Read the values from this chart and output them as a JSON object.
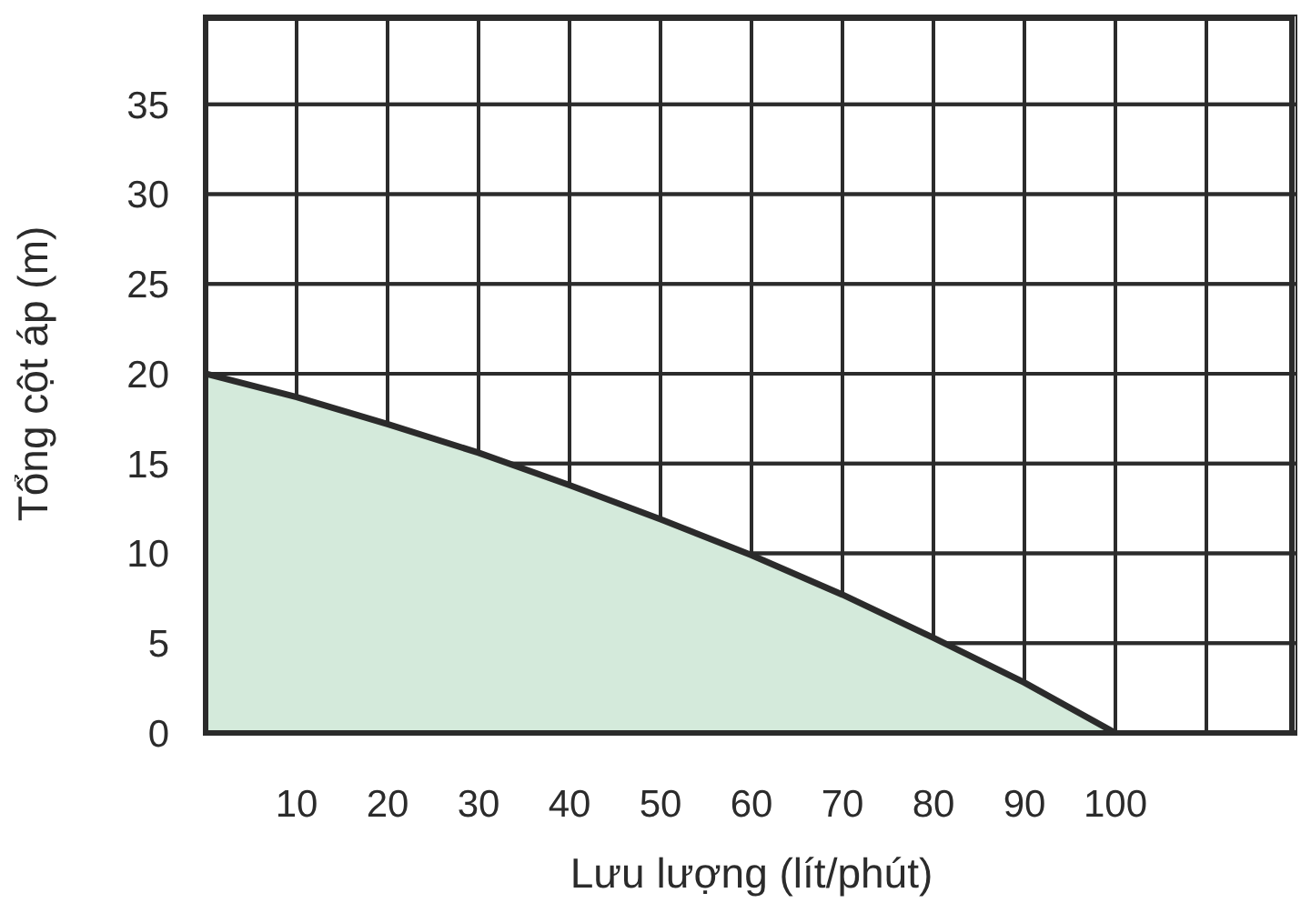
{
  "chart_data": {
    "type": "area",
    "xlabel": "Lưu lượng (lít/phút)",
    "ylabel": "Tổng cột áp (m)",
    "x": [
      0,
      10,
      20,
      30,
      40,
      50,
      60,
      70,
      80,
      90,
      100
    ],
    "series": [
      {
        "color": "#d4eadb",
        "values": [
          20,
          18.7,
          17.2,
          15.6,
          13.8,
          11.9,
          9.9,
          7.7,
          5.3,
          2.8,
          0
        ]
      }
    ],
    "xlim": [
      0,
      120
    ],
    "xticks": [
      {
        "value": 0,
        "label": null
      },
      10,
      20,
      30,
      40,
      50,
      60,
      70,
      80,
      90,
      100,
      {
        "value": 110,
        "label": null
      },
      {
        "value": 120,
        "label": null
      }
    ],
    "ylim": [
      0,
      40
    ],
    "yticks": [
      0,
      5,
      10,
      15,
      20,
      25,
      30,
      35,
      {
        "value": 40,
        "label": null
      }
    ],
    "grid": true
  }
}
